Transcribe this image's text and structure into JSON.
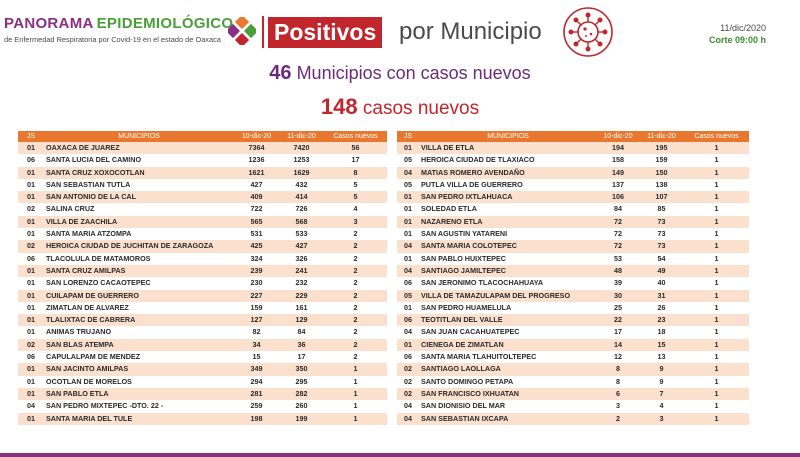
{
  "header": {
    "brand_word1": "PANORAMA",
    "brand_word2": "EPIDEMIOLÓGICO",
    "brand_subtitle": "de Enfermedad Respiratoria por Covid-19 en el estado de Oaxaca",
    "badge": "Positivos",
    "title_rest": "por Municipio",
    "date": "11/dic/2020",
    "cutoff": "Corte 09:00 h"
  },
  "summary": {
    "municipios_count": "46",
    "municipios_text": "Municipios con casos nuevos",
    "cases_count": "148",
    "cases_text": "casos nuevos"
  },
  "colors": {
    "purple": "#8a2f86",
    "red": "#c0262c",
    "orange": "#e8782f",
    "green": "#4b9d3a",
    "row_tint": "#fbe0cd"
  },
  "table_headers": [
    "JS",
    "MUNICIPIOS",
    "10-dic-20",
    "11-dic-20",
    "Casos nuevos"
  ],
  "table_left": [
    [
      "01",
      "OAXACA DE JUAREZ",
      "7364",
      "7420",
      "56"
    ],
    [
      "06",
      "SANTA LUCIA DEL CAMINO",
      "1236",
      "1253",
      "17"
    ],
    [
      "01",
      "SANTA CRUZ XOXOCOTLAN",
      "1621",
      "1629",
      "8"
    ],
    [
      "01",
      "SAN SEBASTIAN TUTLA",
      "427",
      "432",
      "5"
    ],
    [
      "01",
      "SAN ANTONIO DE LA CAL",
      "409",
      "414",
      "5"
    ],
    [
      "02",
      "SALINA CRUZ",
      "722",
      "726",
      "4"
    ],
    [
      "01",
      "VILLA DE ZAACHILA",
      "565",
      "568",
      "3"
    ],
    [
      "01",
      "SANTA MARIA ATZOMPA",
      "531",
      "533",
      "2"
    ],
    [
      "02",
      "HEROICA CIUDAD DE JUCHITAN DE ZARAGOZA",
      "425",
      "427",
      "2"
    ],
    [
      "06",
      "TLACOLULA DE MATAMOROS",
      "324",
      "326",
      "2"
    ],
    [
      "01",
      "SANTA CRUZ AMILPAS",
      "239",
      "241",
      "2"
    ],
    [
      "01",
      "SAN LORENZO CACAOTEPEC",
      "230",
      "232",
      "2"
    ],
    [
      "01",
      "CUILAPAM DE GUERRERO",
      "227",
      "229",
      "2"
    ],
    [
      "01",
      "ZIMATLAN DE ALVAREZ",
      "159",
      "161",
      "2"
    ],
    [
      "01",
      "TLALIXTAC DE CABRERA",
      "127",
      "129",
      "2"
    ],
    [
      "01",
      "ANIMAS TRUJANO",
      "82",
      "84",
      "2"
    ],
    [
      "02",
      "SAN BLAS ATEMPA",
      "34",
      "36",
      "2"
    ],
    [
      "06",
      "CAPULALPAM DE MENDEZ",
      "15",
      "17",
      "2"
    ],
    [
      "01",
      "SAN JACINTO AMILPAS",
      "349",
      "350",
      "1"
    ],
    [
      "01",
      "OCOTLAN DE MORELOS",
      "294",
      "295",
      "1"
    ],
    [
      "01",
      "SAN PABLO ETLA",
      "281",
      "282",
      "1"
    ],
    [
      "04",
      "SAN PEDRO MIXTEPEC -DTO. 22 -",
      "259",
      "260",
      "1"
    ],
    [
      "01",
      "SANTA MARIA DEL TULE",
      "198",
      "199",
      "1"
    ]
  ],
  "table_right": [
    [
      "01",
      "VILLA DE ETLA",
      "194",
      "195",
      "1"
    ],
    [
      "05",
      "HEROICA CIUDAD DE TLAXIACO",
      "158",
      "159",
      "1"
    ],
    [
      "04",
      "MATIAS ROMERO AVENDAÑO",
      "149",
      "150",
      "1"
    ],
    [
      "05",
      "PUTLA VILLA DE GUERRERO",
      "137",
      "138",
      "1"
    ],
    [
      "01",
      "SAN PEDRO IXTLAHUACA",
      "106",
      "107",
      "1"
    ],
    [
      "01",
      "SOLEDAD ETLA",
      "84",
      "85",
      "1"
    ],
    [
      "01",
      "NAZARENO ETLA",
      "72",
      "73",
      "1"
    ],
    [
      "01",
      "SAN AGUSTIN YATARENI",
      "72",
      "73",
      "1"
    ],
    [
      "04",
      "SANTA MARIA COLOTEPEC",
      "72",
      "73",
      "1"
    ],
    [
      "01",
      "SAN PABLO HUIXTEPEC",
      "53",
      "54",
      "1"
    ],
    [
      "04",
      "SANTIAGO JAMILTEPEC",
      "48",
      "49",
      "1"
    ],
    [
      "06",
      "SAN JERONIMO TLACOCHAHUAYA",
      "39",
      "40",
      "1"
    ],
    [
      "05",
      "VILLA DE TAMAZULAPAM DEL PROGRESO",
      "30",
      "31",
      "1"
    ],
    [
      "01",
      "SAN PEDRO HUAMELULA",
      "25",
      "26",
      "1"
    ],
    [
      "06",
      "TEOTITLAN DEL VALLE",
      "22",
      "23",
      "1"
    ],
    [
      "04",
      "SAN JUAN CACAHUATEPEC",
      "17",
      "18",
      "1"
    ],
    [
      "01",
      "CIENEGA DE ZIMATLAN",
      "14",
      "15",
      "1"
    ],
    [
      "06",
      "SANTA MARIA TLAHUITOLTEPEC",
      "12",
      "13",
      "1"
    ],
    [
      "02",
      "SANTIAGO LAOLLAGA",
      "8",
      "9",
      "1"
    ],
    [
      "02",
      "SANTO DOMINGO PETAPA",
      "8",
      "9",
      "1"
    ],
    [
      "02",
      "SAN FRANCISCO IXHUATAN",
      "6",
      "7",
      "1"
    ],
    [
      "04",
      "SAN DIONISIO DEL MAR",
      "3",
      "4",
      "1"
    ],
    [
      "04",
      "SAN SEBASTIAN IXCAPA",
      "2",
      "3",
      "1"
    ]
  ]
}
